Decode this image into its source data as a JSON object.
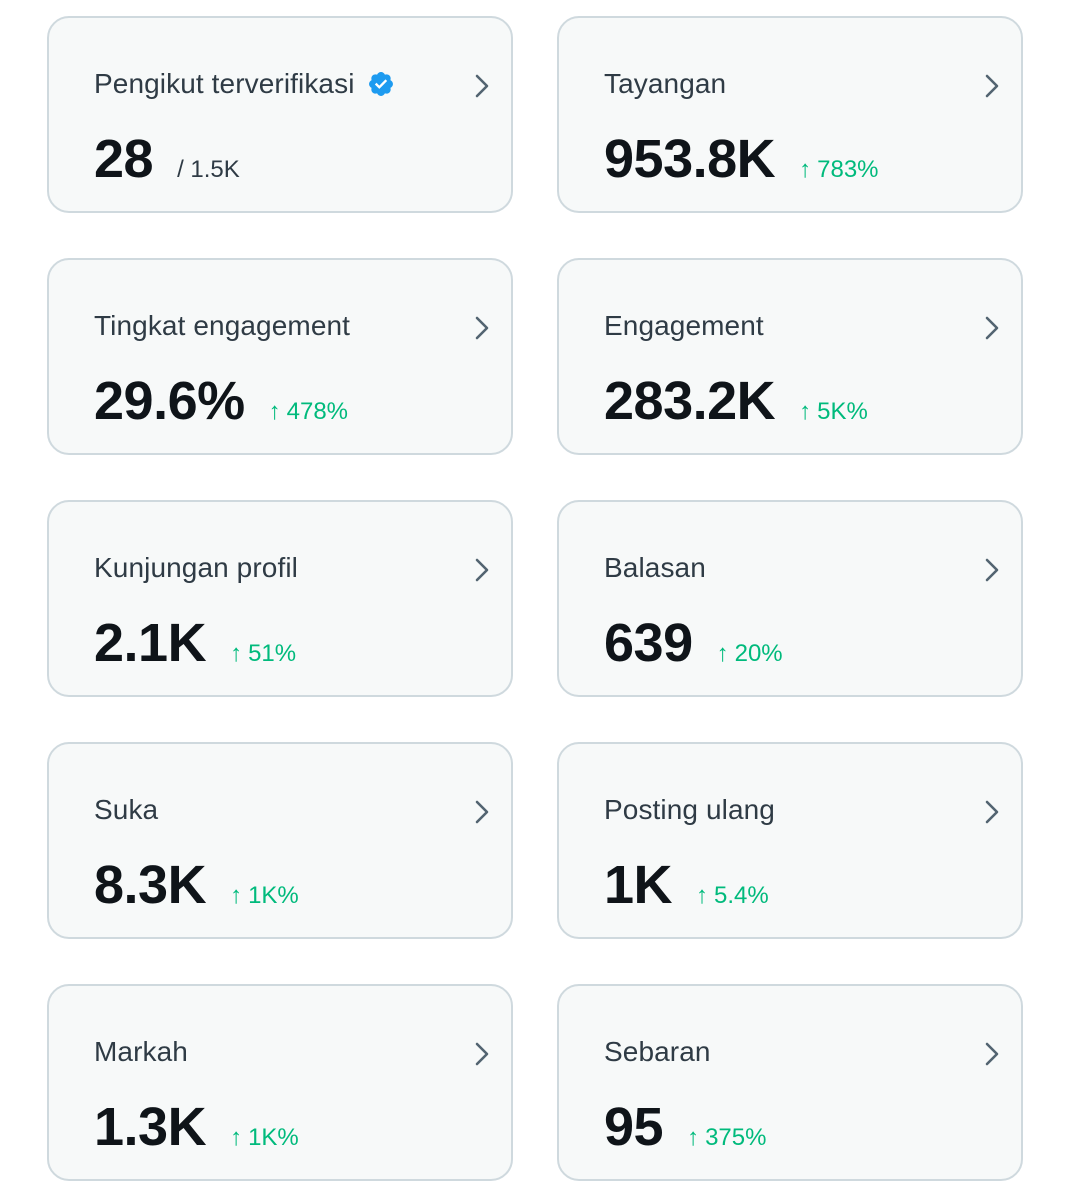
{
  "colors": {
    "card_background": "#f7f9f9",
    "card_border": "#cfd9de",
    "label_text": "#2f3b45",
    "value_text": "#0f1419",
    "positive_change": "#00ba7c",
    "verified_badge": "#1d9bf0"
  },
  "cards": [
    {
      "label": "Pengikut terverifikasi",
      "value": "28",
      "sub": "/ 1.5K",
      "verified_icon": "verified-badge-icon"
    },
    {
      "label": "Tayangan",
      "value": "953.8K",
      "arrow": "↑",
      "change": "783%"
    },
    {
      "label": "Tingkat engagement",
      "value": "29.6%",
      "arrow": "↑",
      "change": "478%"
    },
    {
      "label": "Engagement",
      "value": "283.2K",
      "arrow": "↑",
      "change": "5K%"
    },
    {
      "label": "Kunjungan profil",
      "value": "2.1K",
      "arrow": "↑",
      "change": "51%"
    },
    {
      "label": "Balasan",
      "value": "639",
      "arrow": "↑",
      "change": "20%"
    },
    {
      "label": "Suka",
      "value": "8.3K",
      "arrow": "↑",
      "change": "1K%"
    },
    {
      "label": "Posting ulang",
      "value": "1K",
      "arrow": "↑",
      "change": "5.4%"
    },
    {
      "label": "Markah",
      "value": "1.3K",
      "arrow": "↑",
      "change": "1K%"
    },
    {
      "label": "Sebaran",
      "value": "95",
      "arrow": "↑",
      "change": "375%"
    }
  ],
  "icons": {
    "card_chevron": "chevron-right-icon",
    "change_arrow": "arrow-up-icon"
  }
}
